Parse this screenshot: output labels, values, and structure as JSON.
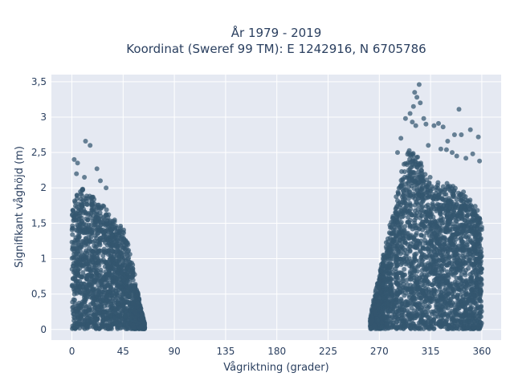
{
  "chart_data": {
    "type": "scatter",
    "title_line1": "År 1979 - 2019",
    "title_line2": "Koordinat (Sweref 99 TM): E 1242916, N 6705786",
    "xlabel": "Vågriktning (grader)",
    "ylabel": "Signifikant våghöjd (m)",
    "xlim": [
      -18,
      377
    ],
    "ylim": [
      -0.15,
      3.6
    ],
    "x_ticks": [
      0,
      45,
      90,
      135,
      180,
      225,
      270,
      315,
      360
    ],
    "x_tick_labels": [
      "0",
      "45",
      "90",
      "135",
      "180",
      "225",
      "270",
      "315",
      "360"
    ],
    "y_ticks": [
      0,
      0.5,
      1,
      1.5,
      2,
      2.5,
      3,
      3.5
    ],
    "y_tick_labels": [
      "0",
      "0,5",
      "1",
      "1,5",
      "2",
      "2,5",
      "3",
      "3,5"
    ],
    "grid": true,
    "legend": "none",
    "colors": {
      "marker": "#33566f",
      "plot_bg": "#e5e9f2",
      "grid": "#ffffff",
      "text": "#2a3f5f"
    },
    "clusters": [
      {
        "x_range": [
          0,
          64
        ],
        "envelope": [
          [
            0,
            1.7
          ],
          [
            5,
            2.0
          ],
          [
            10,
            2.1
          ],
          [
            15,
            2.0
          ],
          [
            20,
            1.9
          ],
          [
            25,
            1.85
          ],
          [
            30,
            1.75
          ],
          [
            35,
            1.6
          ],
          [
            40,
            1.55
          ],
          [
            45,
            1.45
          ],
          [
            50,
            1.2
          ],
          [
            55,
            0.8
          ],
          [
            60,
            0.35
          ],
          [
            64,
            0.08
          ]
        ]
      },
      {
        "x_range": [
          262,
          360
        ],
        "envelope": [
          [
            262,
            0.15
          ],
          [
            265,
            0.45
          ],
          [
            270,
            0.8
          ],
          [
            275,
            1.2
          ],
          [
            280,
            1.6
          ],
          [
            285,
            1.9
          ],
          [
            290,
            2.3
          ],
          [
            295,
            2.55
          ],
          [
            300,
            2.65
          ],
          [
            305,
            2.5
          ],
          [
            310,
            2.25
          ],
          [
            315,
            2.15
          ],
          [
            320,
            2.1
          ],
          [
            325,
            2.05
          ],
          [
            330,
            2.1
          ],
          [
            335,
            2.05
          ],
          [
            340,
            2.0
          ],
          [
            345,
            1.95
          ],
          [
            350,
            1.9
          ],
          [
            355,
            1.8
          ],
          [
            360,
            1.6
          ]
        ]
      }
    ],
    "outliers": [
      [
        12,
        2.66
      ],
      [
        16,
        2.6
      ],
      [
        2,
        2.4
      ],
      [
        5,
        2.35
      ],
      [
        22,
        2.27
      ],
      [
        4,
        2.2
      ],
      [
        11,
        2.15
      ],
      [
        25,
        2.1
      ],
      [
        30,
        2.0
      ],
      [
        305,
        3.46
      ],
      [
        301,
        3.35
      ],
      [
        303,
        3.28
      ],
      [
        306,
        3.2
      ],
      [
        300,
        3.15
      ],
      [
        297,
        3.05
      ],
      [
        293,
        2.98
      ],
      [
        309,
        2.98
      ],
      [
        299,
        2.93
      ],
      [
        311,
        2.9
      ],
      [
        302,
        2.88
      ],
      [
        318,
        2.88
      ],
      [
        326,
        2.86
      ],
      [
        322,
        2.91
      ],
      [
        330,
        2.66
      ],
      [
        336,
        2.75
      ],
      [
        342,
        2.75
      ],
      [
        350,
        2.82
      ],
      [
        357,
        2.72
      ],
      [
        329,
        2.54
      ],
      [
        334,
        2.5
      ],
      [
        352,
        2.48
      ],
      [
        346,
        2.42
      ],
      [
        338,
        2.45
      ],
      [
        358,
        2.38
      ],
      [
        340,
        3.11
      ],
      [
        286,
        2.5
      ],
      [
        289,
        2.7
      ],
      [
        313,
        2.6
      ],
      [
        324,
        2.55
      ]
    ]
  }
}
